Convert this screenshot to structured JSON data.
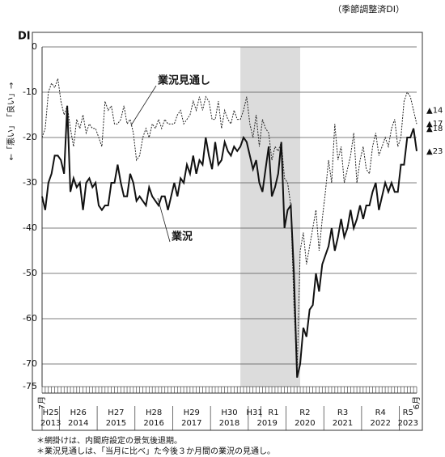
{
  "chart_data": {
    "type": "line",
    "subtitle": "（季節調整済DI）",
    "y_unit": "DI",
    "y_axis_label": "←「悪い」　「良い」→",
    "notes": [
      "＊網掛けは、内閣府設定の景気後退期。",
      "＊業況見通しは、「当月に比べ」た今後３か月間の業況の見通し。"
    ],
    "categories": [
      "7月",
      null,
      null,
      null,
      null,
      null,
      null,
      null,
      null,
      null,
      null,
      null,
      null,
      null,
      null,
      null,
      null,
      null,
      null,
      null,
      null,
      null,
      null,
      null,
      null,
      null,
      null,
      null,
      null,
      null,
      null,
      null,
      null,
      null,
      null,
      null,
      null,
      null,
      null,
      null,
      null,
      null,
      null,
      null,
      null,
      null,
      null,
      null,
      null,
      null,
      null,
      null,
      null,
      null,
      null,
      null,
      null,
      null,
      null,
      null,
      null,
      null,
      null,
      null,
      null,
      null,
      null,
      null,
      null,
      null,
      null,
      null,
      null,
      null,
      null,
      null,
      null,
      null,
      null,
      null,
      null,
      null,
      null,
      null,
      null,
      null,
      null,
      null,
      null,
      null,
      null,
      null,
      null,
      null,
      null,
      null,
      null,
      null,
      null,
      null,
      null,
      null,
      null,
      null,
      null,
      null,
      null,
      null,
      null,
      null,
      null,
      null,
      null,
      null,
      null,
      null,
      null,
      null,
      null,
      "6月"
    ],
    "eras": [
      "H25",
      "H26",
      "H27",
      "H28",
      "H29",
      "H30",
      "H31",
      "R1",
      "R2",
      "R3",
      "R4",
      "R5"
    ],
    "years": [
      "2013",
      "2014",
      "2015",
      "2016",
      "2017",
      "2018",
      "2019",
      "2020",
      "2021",
      "2022",
      "2023"
    ],
    "shade": {
      "from": 63,
      "to": 82,
      "color": "#dcdcdc"
    },
    "ylim": [
      -75,
      0
    ],
    "yticks": [
      0,
      -10,
      -20,
      -30,
      -40,
      -50,
      -60,
      -70,
      -75
    ],
    "grid": true,
    "series": [
      {
        "name": "業況見通し",
        "color": "#222",
        "dashed": true,
        "values": [
          -20,
          -18,
          -10,
          -8,
          -9,
          -7,
          -12,
          -15,
          -13,
          -18,
          -22,
          -16,
          -18,
          -15,
          -19,
          -17,
          -18,
          -18,
          -20,
          -22,
          -12,
          -14,
          -13,
          -17,
          -17,
          -16,
          -13,
          -17,
          -16,
          -19,
          -25,
          -24,
          -20,
          -18,
          -20,
          -17,
          -18,
          -16,
          -18,
          -16,
          -17,
          -17,
          -17,
          -15,
          -14,
          -17,
          -16,
          -15,
          -12,
          -14,
          -11,
          -14,
          -11,
          -12,
          -16,
          -16,
          -12,
          -18,
          -14,
          -16,
          -17,
          -14,
          -16,
          -16,
          -14,
          -11,
          -17,
          -20,
          -15,
          -22,
          -16,
          -18,
          -19,
          -25,
          -22,
          -23,
          -21,
          -29,
          -30,
          -35,
          -57,
          -72,
          -45,
          -41,
          -48,
          -44,
          -40,
          -36,
          -45,
          -38,
          -32,
          -25,
          -30,
          -17,
          -25,
          -22,
          -30,
          -27,
          -24,
          -19,
          -30,
          -25,
          -22,
          -27,
          -28,
          -22,
          -19,
          -24,
          -22,
          -20,
          -22,
          -18,
          -16,
          -22,
          -20,
          -12,
          -10,
          -11,
          -14,
          -17
        ],
        "value_labels": [
          null,
          null,
          null,
          null,
          null,
          null,
          null,
          null,
          null,
          null,
          null,
          null,
          null,
          null,
          null,
          null,
          null,
          null,
          null,
          null,
          null,
          null,
          null,
          null,
          null,
          null,
          null,
          null,
          null,
          null,
          null,
          null,
          null,
          null,
          null,
          null,
          null,
          null,
          null,
          null,
          null,
          null,
          null,
          null,
          null,
          null,
          null,
          null,
          null,
          null,
          null,
          null,
          null,
          null,
          null,
          null,
          null,
          null,
          null,
          null,
          null,
          null,
          null,
          null,
          null,
          null,
          null,
          null,
          null,
          null,
          null,
          null,
          null,
          null,
          null,
          null,
          null,
          null,
          null,
          null,
          null,
          null,
          null,
          null,
          null,
          null,
          null,
          null,
          null,
          null,
          null,
          null,
          null,
          null,
          null,
          null,
          null,
          null,
          null,
          null,
          null,
          null,
          null,
          null,
          null,
          null,
          null,
          null,
          null,
          null,
          null,
          null,
          null,
          null,
          null,
          null,
          null,
          null,
          "▲14",
          "▲17"
        ]
      },
      {
        "name": "業況",
        "color": "#111",
        "dashed": false,
        "values": [
          -33,
          -36,
          -30,
          -28,
          -24,
          -24,
          -25,
          -28,
          -13,
          -32,
          -29,
          -31,
          -30,
          -36,
          -30,
          -29,
          -31,
          -30,
          -35,
          -36,
          -35,
          -35,
          -30,
          -30,
          -26,
          -30,
          -33,
          -33,
          -28,
          -30,
          -34,
          -33,
          -34,
          -35,
          -31,
          -33,
          -34,
          -35,
          -33,
          -33,
          -36,
          -33,
          -30,
          -33,
          -29,
          -30,
          -26,
          -28,
          -24,
          -28,
          -25,
          -26,
          -20,
          -24,
          -27,
          -21,
          -26,
          -25,
          -21,
          -23,
          -24,
          -22,
          -23,
          -22,
          -20,
          -21,
          -24,
          -27,
          -25,
          -30,
          -32,
          -27,
          -22,
          -33,
          -31,
          -28,
          -21,
          -40,
          -36,
          -35,
          -50,
          -73,
          -70,
          -62,
          -64,
          -58,
          -57,
          -50,
          -54,
          -48,
          -46,
          -44,
          -40,
          -45,
          -42,
          -38,
          -42,
          -40,
          -36,
          -40,
          -38,
          -35,
          -38,
          -35,
          -35,
          -32,
          -30,
          -36,
          -33,
          -30,
          -32,
          -30,
          -32,
          -32,
          -26,
          -26,
          -20,
          -20,
          -18,
          -23
        ],
        "value_labels": [
          null,
          null,
          null,
          null,
          null,
          null,
          null,
          null,
          null,
          null,
          null,
          null,
          null,
          null,
          null,
          null,
          null,
          null,
          null,
          null,
          null,
          null,
          null,
          null,
          null,
          null,
          null,
          null,
          null,
          null,
          null,
          null,
          null,
          null,
          null,
          null,
          null,
          null,
          null,
          null,
          null,
          null,
          null,
          null,
          null,
          null,
          null,
          null,
          null,
          null,
          null,
          null,
          null,
          null,
          null,
          null,
          null,
          null,
          null,
          null,
          null,
          null,
          null,
          null,
          null,
          null,
          null,
          null,
          null,
          null,
          null,
          null,
          null,
          null,
          null,
          null,
          null,
          null,
          null,
          null,
          null,
          null,
          null,
          null,
          null,
          null,
          null,
          null,
          null,
          null,
          null,
          null,
          null,
          null,
          null,
          null,
          null,
          null,
          null,
          null,
          null,
          null,
          null,
          null,
          null,
          null,
          null,
          null,
          null,
          null,
          null,
          null,
          null,
          null,
          null,
          null,
          null,
          null,
          "▲18",
          "▲23"
        ]
      }
    ]
  }
}
